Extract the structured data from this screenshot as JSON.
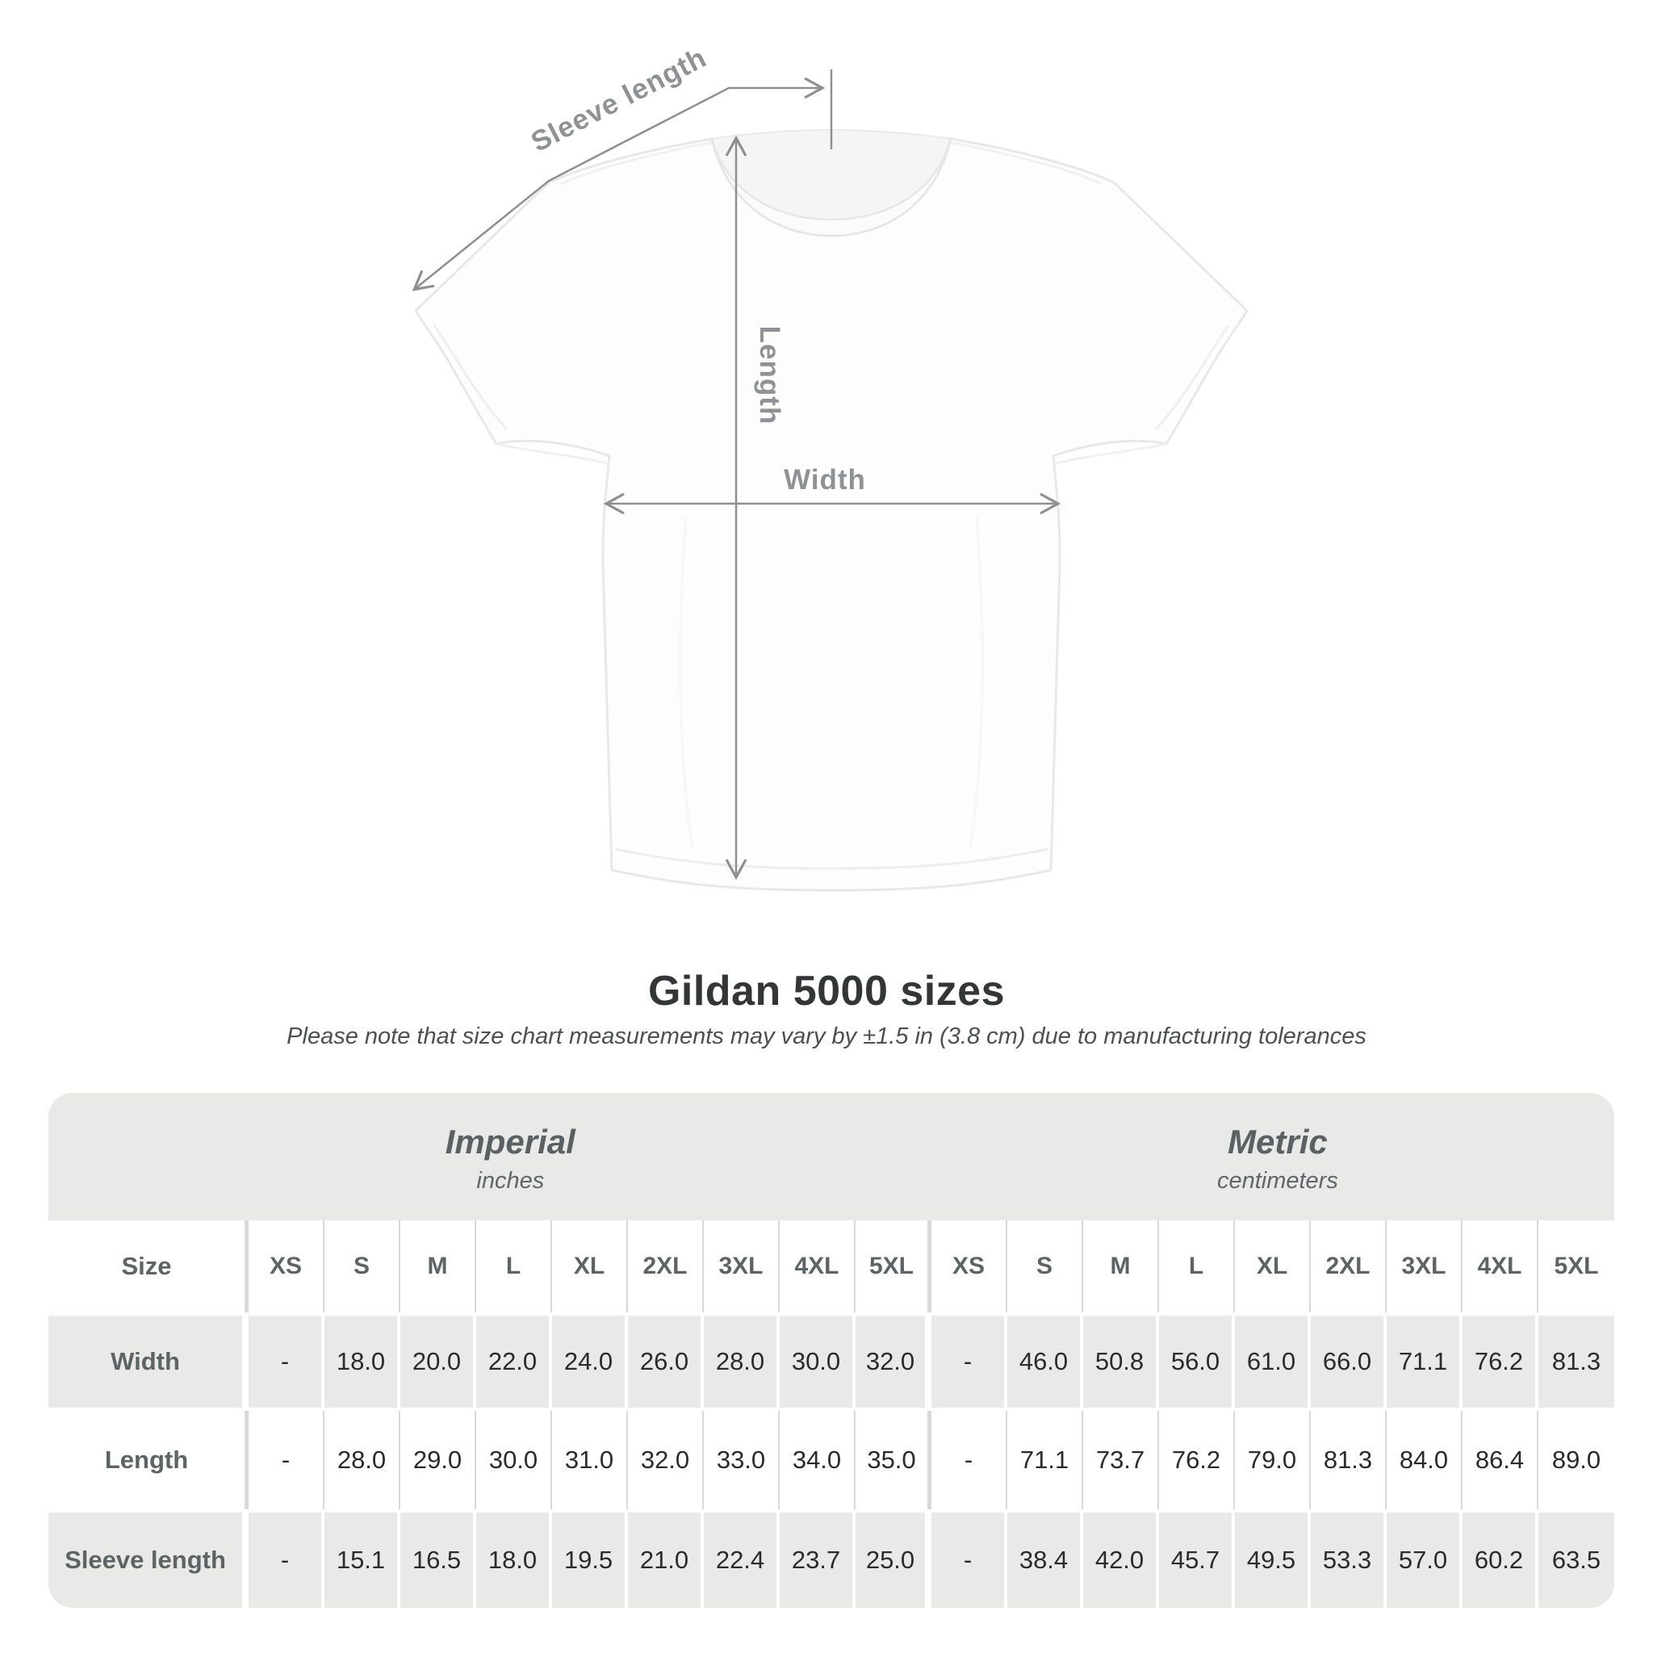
{
  "diagram": {
    "sleeve_length_label": "Sleeve length",
    "length_label": "Length",
    "width_label": "Width"
  },
  "title": "Gildan 5000 sizes",
  "subtitle": "Please note that size chart measurements may vary by ±1.5 in (3.8 cm) due to manufacturing tolerances",
  "table": {
    "size_column_header": "Size",
    "unit_headers": [
      {
        "name": "Imperial",
        "unit": "inches"
      },
      {
        "name": "Metric",
        "unit": "centimeters"
      }
    ],
    "sizes": [
      "XS",
      "S",
      "M",
      "L",
      "XL",
      "2XL",
      "3XL",
      "4XL",
      "5XL"
    ],
    "rows": [
      {
        "label": "Width",
        "imperial": [
          "-",
          "18.0",
          "20.0",
          "22.0",
          "24.0",
          "26.0",
          "28.0",
          "30.0",
          "32.0"
        ],
        "metric": [
          "-",
          "46.0",
          "50.8",
          "56.0",
          "61.0",
          "66.0",
          "71.1",
          "76.2",
          "81.3"
        ]
      },
      {
        "label": "Length",
        "imperial": [
          "-",
          "28.0",
          "29.0",
          "30.0",
          "31.0",
          "32.0",
          "33.0",
          "34.0",
          "35.0"
        ],
        "metric": [
          "-",
          "71.1",
          "73.7",
          "76.2",
          "79.0",
          "81.3",
          "84.0",
          "86.4",
          "89.0"
        ]
      },
      {
        "label": "Sleeve length",
        "imperial": [
          "-",
          "15.1",
          "16.5",
          "18.0",
          "19.5",
          "21.0",
          "22.4",
          "23.7",
          "25.0"
        ],
        "metric": [
          "-",
          "38.4",
          "42.0",
          "45.7",
          "49.5",
          "53.3",
          "57.0",
          "60.2",
          "63.5"
        ]
      }
    ]
  }
}
